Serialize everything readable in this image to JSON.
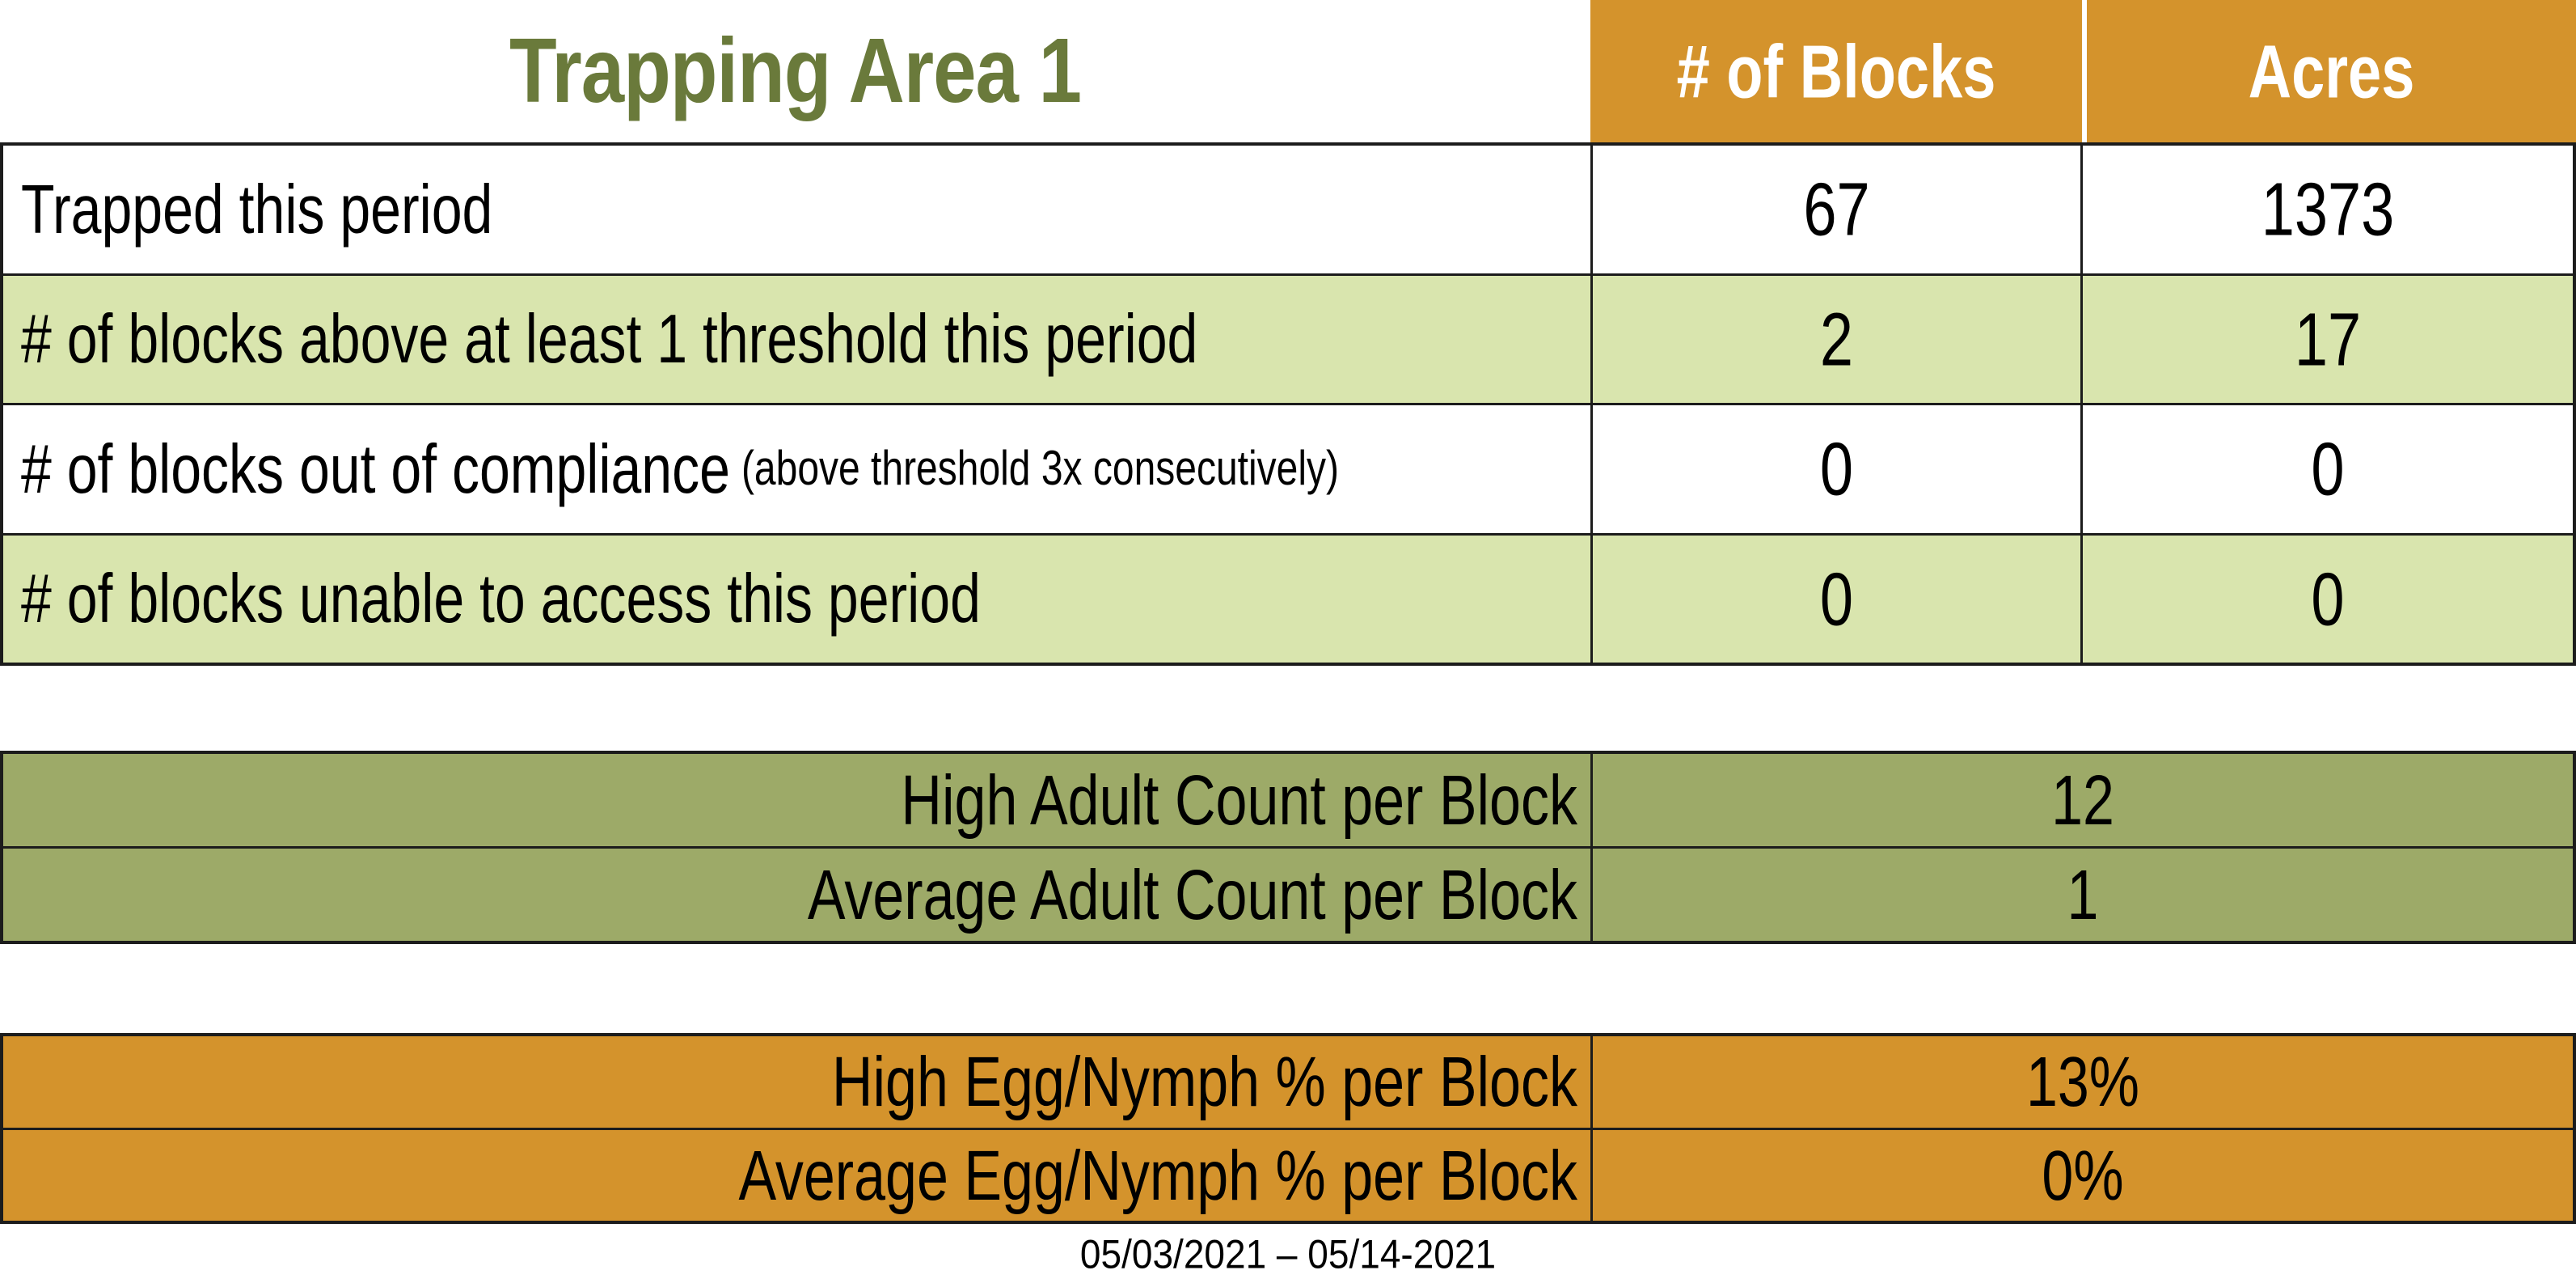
{
  "colors": {
    "orange": "#D4932C",
    "light-green": "#D9E5AE",
    "olive": "#9DAA68",
    "title-green": "#6A7A3B",
    "border": "#1C1C1C",
    "text": "#000000",
    "paper": "#FFFFFF"
  },
  "title": "Trapping Area 1",
  "table1": {
    "header": {
      "blocks_label": "# of Blocks",
      "acres_label": "Acres"
    },
    "rows": [
      {
        "label": "Trapped this period",
        "blocks": "67",
        "acres": "1373"
      },
      {
        "label": "# of blocks above at least 1 threshold this period",
        "blocks": "2",
        "acres": "17"
      },
      {
        "label": "# of blocks out of compliance",
        "note": "(above threshold 3x consecutively)",
        "blocks": "0",
        "acres": "0"
      },
      {
        "label": "# of blocks unable to access this period",
        "blocks": "0",
        "acres": "0"
      }
    ]
  },
  "adult_table": {
    "rows": [
      {
        "label": "High Adult Count per Block",
        "value": "12"
      },
      {
        "label": "Average Adult Count per Block",
        "value": "1"
      }
    ]
  },
  "egg_table": {
    "rows": [
      {
        "label": "High Egg/Nymph % per Block",
        "value": "13%"
      },
      {
        "label": "Average Egg/Nymph % per Block",
        "value": "0%"
      }
    ]
  },
  "footer": {
    "date_range": "05/03/2021 – 05/14-2021"
  }
}
